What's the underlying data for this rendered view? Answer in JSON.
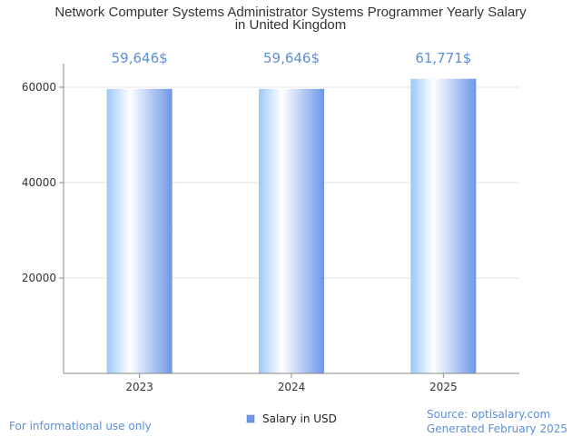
{
  "chart_data": {
    "type": "bar",
    "title_lines": [
      "Network Computer Systems Administrator Systems Programmer Yearly Salary",
      "in United Kingdom"
    ],
    "categories": [
      "2023",
      "2024",
      "2025"
    ],
    "series": [
      {
        "name": "Salary in USD",
        "values": [
          59646,
          59646,
          61771
        ]
      }
    ],
    "data_labels": [
      "59,646$",
      "59,646$",
      "61,771$"
    ],
    "ylim": [
      0,
      65000
    ],
    "yticks": [
      20000,
      40000,
      60000
    ],
    "ytick_labels": [
      "20000",
      "40000",
      "60000"
    ],
    "grid": true,
    "legend_position": "bottom-center",
    "colors": {
      "bar_edge": "#6f9be8",
      "bar_light": "#ffffff",
      "label": "#5b8fd6"
    }
  },
  "footer": {
    "left": "For informational use only",
    "source": "Source: optisalary.com",
    "generated": "Generated February 2025"
  }
}
